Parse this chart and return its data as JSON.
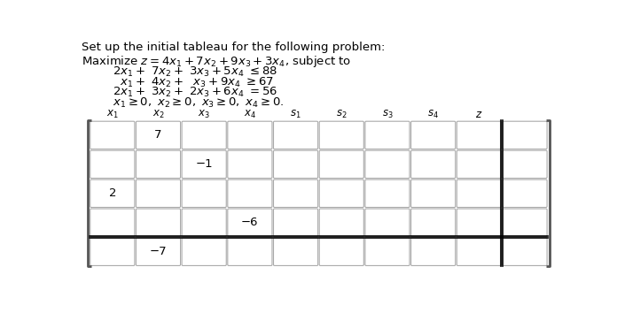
{
  "title_line1": "Set up the initial tableau for the following problem:",
  "maximize_line": "Maximize z = 4x_1 + 7x_2 + 9x_3 + 3x_4, subject to",
  "col_headers": [
    "x_1",
    "x_2",
    "x_3",
    "x_4",
    "s_1",
    "s_2",
    "s_3",
    "s_4",
    "z"
  ],
  "num_data_cols": 9,
  "num_rows": 5,
  "labeled_cells": {
    "0_1": "7",
    "1_2": "−1",
    "2_0": "2",
    "3_3": "−6",
    "4_1": "−7"
  },
  "bg_color": "#ffffff",
  "text_color": "#000000",
  "cell_border_color": "#aaaaaa",
  "bracket_color": "#555555",
  "font_size_title": 9.5,
  "font_size_math": 9.5,
  "font_size_cell": 9.5,
  "font_size_header": 8.5
}
